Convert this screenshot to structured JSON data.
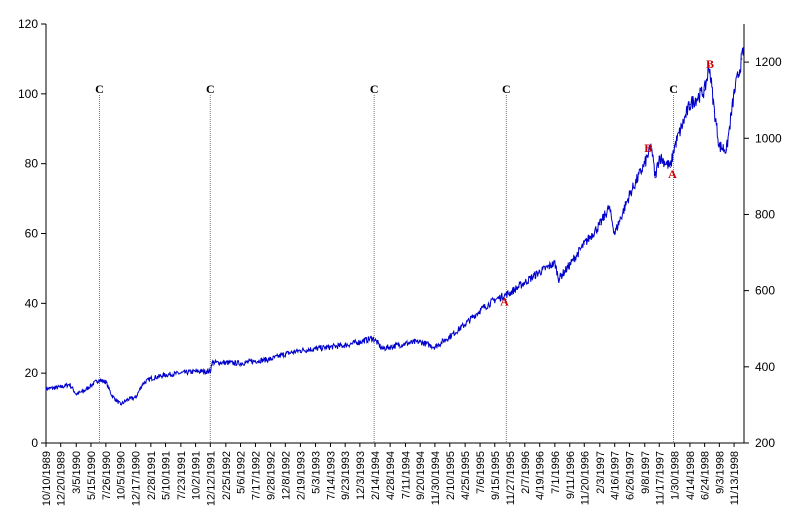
{
  "chart_data": {
    "type": "line",
    "title": "",
    "xlabel": "",
    "ylabel": "",
    "y_left": {
      "ylim": [
        0,
        120
      ],
      "ticks": [
        "0",
        "20",
        "40",
        "60",
        "80",
        "100",
        "120"
      ]
    },
    "y_right": {
      "ylim": [
        200,
        1300
      ],
      "ticks": [
        "200",
        "400",
        "600",
        "800",
        "1000",
        "1200"
      ]
    },
    "x_tick_labels": [
      "10/10/1989",
      "12/20/1989",
      "3/5/1990",
      "5/15/1990",
      "7/26/1990",
      "10/5/1990",
      "12/17/1990",
      "2/28/1991",
      "5/10/1991",
      "7/23/1991",
      "10/2/1991",
      "12/12/1991",
      "2/25/1992",
      "5/6/1992",
      "7/17/1992",
      "9/28/1992",
      "12/8/1992",
      "2/19/1993",
      "5/3/1993",
      "7/14/1993",
      "9/23/1993",
      "12/3/1993",
      "2/14/1994",
      "4/28/1994",
      "7/11/1994",
      "9/20/1994",
      "11/30/1994",
      "2/10/1995",
      "4/25/1995",
      "7/6/1995",
      "9/15/1995",
      "11/27/1995",
      "2/7/1996",
      "4/19/1996",
      "7/1/1996",
      "9/11/1996",
      "11/20/1996",
      "2/3/1997",
      "4/16/1997",
      "6/26/1997",
      "9/8/1997",
      "11/17/1997",
      "1/30/1998",
      "4/14/1998",
      "6/24/1998",
      "9/3/1998",
      "11/13/1998"
    ],
    "grid": false,
    "legend": "none",
    "series": [
      {
        "axis": "left",
        "color": "#0000cc",
        "points": [
          [
            "10/10/1989",
            15.5
          ],
          [
            "12/20/1989",
            16.0
          ],
          [
            "2/1/1990",
            16.8
          ],
          [
            "3/5/1990",
            14.0
          ],
          [
            "4/15/1990",
            15.0
          ],
          [
            "5/15/1990",
            16.5
          ],
          [
            "6/20/1990",
            18.0
          ],
          [
            "7/26/1990",
            17.5
          ],
          [
            "8/25/1990",
            13.5
          ],
          [
            "10/5/1990",
            11.0
          ],
          [
            "11/10/1990",
            12.5
          ],
          [
            "12/17/1990",
            13.0
          ],
          [
            "1/20/1991",
            17.0
          ],
          [
            "2/28/1991",
            18.5
          ],
          [
            "5/10/1991",
            19.5
          ],
          [
            "7/23/1991",
            20.0
          ],
          [
            "10/2/1991",
            20.5
          ],
          [
            "12/12/1991",
            20.5
          ],
          [
            "12/20/1991",
            23.0
          ],
          [
            "2/25/1992",
            23.0
          ],
          [
            "5/6/1992",
            22.8
          ],
          [
            "7/17/1992",
            23.5
          ],
          [
            "9/28/1992",
            24.0
          ],
          [
            "12/8/1992",
            25.5
          ],
          [
            "2/19/1993",
            26.5
          ],
          [
            "5/3/1993",
            27.0
          ],
          [
            "7/14/1993",
            27.5
          ],
          [
            "9/23/1993",
            28.0
          ],
          [
            "12/3/1993",
            29.0
          ],
          [
            "2/1/1994",
            30.0
          ],
          [
            "2/14/1994",
            29.5
          ],
          [
            "3/20/1994",
            27.0
          ],
          [
            "4/28/1994",
            27.5
          ],
          [
            "7/11/1994",
            28.5
          ],
          [
            "9/20/1994",
            29.0
          ],
          [
            "11/30/1994",
            27.5
          ],
          [
            "2/10/1995",
            30.5
          ],
          [
            "4/25/1995",
            34.0
          ],
          [
            "7/6/1995",
            38.0
          ],
          [
            "9/15/1995",
            41.0
          ],
          [
            "11/27/1995",
            43.0
          ],
          [
            "2/7/1996",
            46.0
          ],
          [
            "4/19/1996",
            49.0
          ],
          [
            "7/1/1996",
            51.5
          ],
          [
            "7/20/1996",
            47.0
          ],
          [
            "9/11/1996",
            51.0
          ],
          [
            "11/20/1996",
            57.0
          ],
          [
            "2/3/1997",
            62.5
          ],
          [
            "3/20/1997",
            67.5
          ],
          [
            "4/16/1997",
            60.0
          ],
          [
            "6/26/1997",
            71.0
          ],
          [
            "9/8/1997",
            80.0
          ],
          [
            "10/10/1997",
            85.0
          ],
          [
            "10/28/1997",
            76.0
          ],
          [
            "11/17/1997",
            82.0
          ],
          [
            "1/10/1998",
            79.0
          ],
          [
            "1/30/1998",
            85.0
          ],
          [
            "4/14/1998",
            97.0
          ],
          [
            "6/24/1998",
            101.0
          ],
          [
            "7/17/1998",
            108.0
          ],
          [
            "8/10/1998",
            95.0
          ],
          [
            "9/3/1998",
            85.0
          ],
          [
            "10/8/1998",
            84.0
          ],
          [
            "11/13/1998",
            100.0
          ],
          [
            "12/20/1998",
            110.0
          ],
          [
            "12/31/1998",
            113.0
          ]
        ]
      }
    ],
    "annotations": {
      "vertical_lines": [
        {
          "label": "C",
          "x": "6/25/1990"
        },
        {
          "label": "C",
          "x": "12/12/1991"
        },
        {
          "label": "C",
          "x": "2/10/1994"
        },
        {
          "label": "C",
          "x": "11/10/1995"
        },
        {
          "label": "C",
          "x": "1/25/1998"
        }
      ],
      "points": [
        {
          "label": "A",
          "x": "11/1/1995",
          "y": 40.5,
          "color": "#cc0000"
        },
        {
          "label": "B",
          "x": "9/25/1997",
          "y": 84.5,
          "color": "#cc0000"
        },
        {
          "label": "A",
          "x": "1/20/1998",
          "y": 77.0,
          "color": "#cc0000"
        },
        {
          "label": "B",
          "x": "7/20/1998",
          "y": 108.5,
          "color": "#cc0000"
        }
      ]
    }
  }
}
